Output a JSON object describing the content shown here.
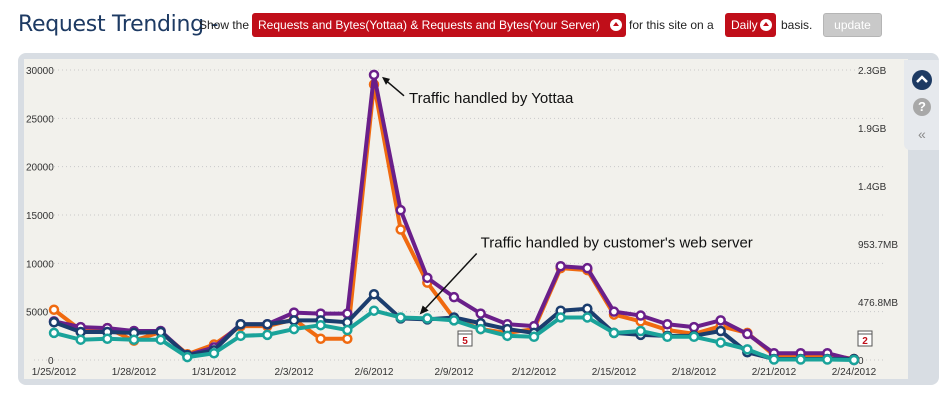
{
  "header": {
    "title": "Request Trending -",
    "show_the": "Show the",
    "metric_select": "Requests and Bytes(Yottaa) & Requests and Bytes(Your Server)",
    "for_site": "for this site on a",
    "period_select": "Daily",
    "basis": "basis.",
    "update_label": "update"
  },
  "colors": {
    "title": "#1d3a63",
    "select_bg": "#c00e19",
    "orange": "#f06a10",
    "purple": "#6a1f8a",
    "navy": "#1b3d6e",
    "teal": "#1aa39a"
  },
  "sidebar": {
    "icons": [
      "collapse-up-icon",
      "help-icon",
      "double-chevron-left-icon"
    ],
    "help_glyph": "?",
    "collapse_glyph": "«"
  },
  "chart_data": {
    "type": "line",
    "x": [
      "1/25/2012",
      "1/26/2012",
      "1/27/2012",
      "1/28/2012",
      "1/29/2012",
      "1/30/2012",
      "1/31/2012",
      "2/1/2012",
      "2/2/2012",
      "2/3/2012",
      "2/4/2012",
      "2/5/2012",
      "2/6/2012",
      "2/7/2012",
      "2/8/2012",
      "2/9/2012",
      "2/10/2012",
      "2/11/2012",
      "2/12/2012",
      "2/13/2012",
      "2/14/2012",
      "2/15/2012",
      "2/16/2012",
      "2/17/2012",
      "2/18/2012",
      "2/19/2012",
      "2/20/2012",
      "2/21/2012",
      "2/22/2012",
      "2/23/2012",
      "2/24/2012"
    ],
    "x_tick_labels": [
      "1/25/2012",
      "1/28/2012",
      "1/31/2012",
      "2/3/2012",
      "2/6/2012",
      "2/9/2012",
      "2/12/2012",
      "2/15/2012",
      "2/18/2012",
      "2/21/2012",
      "2/24/2012"
    ],
    "left_axis": {
      "ylim": [
        0,
        30000
      ],
      "ticks": [
        "0",
        "5000",
        "10000",
        "15000",
        "20000",
        "25000",
        "30000"
      ]
    },
    "right_axis": {
      "ticks": [
        "0",
        "476.8MB",
        "953.7MB",
        "1.4GB",
        "1.9GB",
        "2.3GB"
      ]
    },
    "grid": "horizontal dotted",
    "series": [
      {
        "color": "#f06a10",
        "axis": "left",
        "values": [
          5200,
          3100,
          3300,
          2000,
          2900,
          600,
          1600,
          3500,
          3500,
          4200,
          2200,
          2200,
          28500,
          13500,
          8000,
          4300,
          3200,
          2800,
          3200,
          9500,
          9300,
          4700,
          4000,
          3100,
          2700,
          3500,
          2800,
          500,
          400,
          500,
          100
        ]
      },
      {
        "color": "#6a1f8a",
        "axis": "left",
        "values": [
          4000,
          3400,
          3300,
          3000,
          3000,
          500,
          1300,
          3700,
          3700,
          4900,
          4800,
          4800,
          29500,
          15500,
          8500,
          6500,
          4800,
          3700,
          3500,
          9700,
          9500,
          5000,
          4600,
          3700,
          3400,
          4100,
          2700,
          700,
          700,
          700,
          0
        ]
      },
      {
        "color": "#1b3d6e",
        "axis": "left",
        "values": [
          3900,
          2900,
          2900,
          2800,
          2900,
          500,
          1000,
          3700,
          3700,
          4100,
          4100,
          3900,
          6800,
          4300,
          4200,
          4400,
          3800,
          3200,
          2800,
          5100,
          5300,
          2800,
          2600,
          2500,
          2500,
          3000,
          800,
          100,
          100,
          100,
          100
        ]
      },
      {
        "color": "#1aa39a",
        "axis": "left",
        "values": [
          2800,
          2100,
          2200,
          2100,
          2100,
          300,
          700,
          2500,
          2600,
          3200,
          3600,
          3100,
          5100,
          4400,
          4300,
          4100,
          3200,
          2500,
          2400,
          4400,
          4400,
          2800,
          3000,
          2400,
          2400,
          1800,
          1100,
          50,
          50,
          50,
          0
        ]
      }
    ],
    "annotations": [
      {
        "text": "Traffic handled by Yottaa",
        "target_x": "2/6/2012"
      },
      {
        "text": "Traffic handled by customer's web server",
        "target_x": "2/7/2012"
      }
    ],
    "markers": [
      {
        "label": "5",
        "x": "2/9/2012"
      },
      {
        "label": "2",
        "x": "2/24/2012"
      }
    ]
  }
}
